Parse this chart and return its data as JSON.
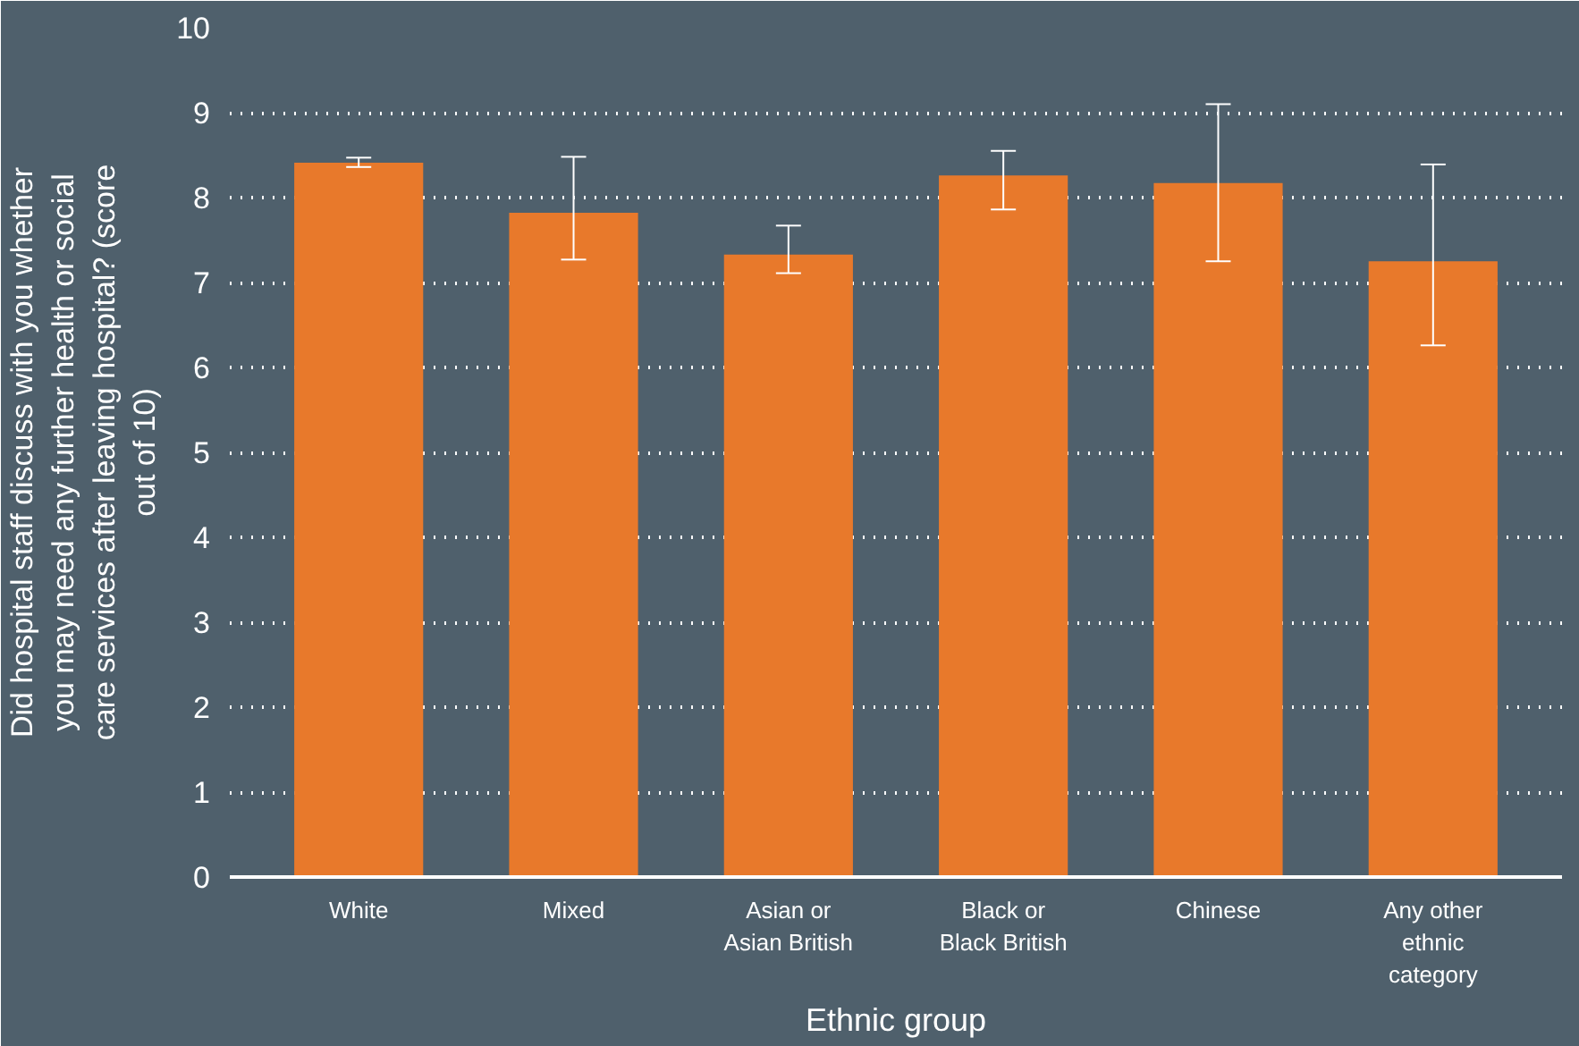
{
  "chart_data": {
    "type": "bar",
    "xlabel": "Ethnic group",
    "ylabel": "Did hospital staff discuss with you whether you may need any further health or social care services after leaving hospital? (score out of 10)",
    "categories": [
      "White",
      "Mixed",
      "Asian or Asian British",
      "Black or Black British",
      "Chinese",
      "Any other ethnic category"
    ],
    "values": [
      8.41,
      7.82,
      7.33,
      8.26,
      8.17,
      7.25
    ],
    "errors": [
      [
        8.36,
        8.47
      ],
      [
        7.27,
        8.48
      ],
      [
        7.11,
        7.67
      ],
      [
        7.86,
        8.55
      ],
      [
        7.25,
        9.1
      ],
      [
        6.26,
        8.39
      ]
    ],
    "color": "#e8792b",
    "ylim": [
      0,
      10
    ],
    "yticks": [
      0,
      1,
      2,
      3,
      4,
      5,
      6,
      7,
      8,
      9,
      10
    ],
    "grid": "y"
  }
}
